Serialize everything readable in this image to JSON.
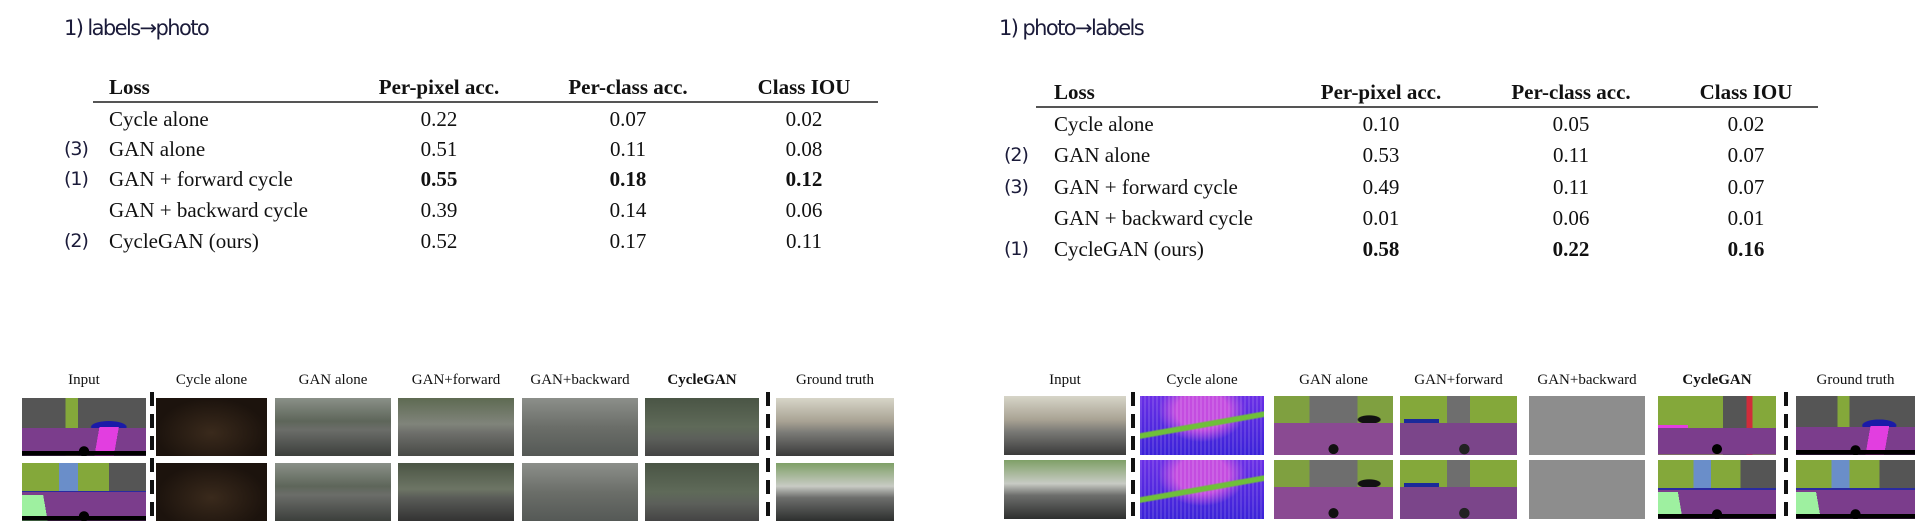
{
  "panels": [
    {
      "title": "1) labels→photo",
      "table": {
        "headers": [
          "Loss",
          "Per-pixel acc.",
          "Per-class acc.",
          "Class IOU"
        ],
        "rows": [
          {
            "marker": "",
            "loss": "Cycle alone",
            "values": [
              "0.22",
              "0.07",
              "0.02"
            ],
            "bold": false
          },
          {
            "marker": "(3)",
            "loss": "GAN alone",
            "values": [
              "0.51",
              "0.11",
              "0.08"
            ],
            "bold": false
          },
          {
            "marker": "(1)",
            "loss": "GAN + forward cycle",
            "values": [
              "0.55",
              "0.18",
              "0.12"
            ],
            "bold": true
          },
          {
            "marker": "",
            "loss": "GAN + backward cycle",
            "values": [
              "0.39",
              "0.14",
              "0.06"
            ],
            "bold": false
          },
          {
            "marker": "(2)",
            "loss": "CycleGAN (ours)",
            "values": [
              "0.52",
              "0.17",
              "0.11"
            ],
            "bold": false
          }
        ]
      },
      "columns": [
        {
          "label": "Input",
          "bold": false,
          "styles": [
            "seg",
            "seg2"
          ]
        },
        {
          "label": "Cycle alone",
          "bold": false,
          "styles": [
            "dark",
            "dark"
          ]
        },
        {
          "label": "GAN alone",
          "bold": false,
          "styles": [
            "photo",
            "photo"
          ]
        },
        {
          "label": "GAN+forward",
          "bold": false,
          "styles": [
            "fwd",
            "photo2"
          ]
        },
        {
          "label": "GAN+backward",
          "bold": false,
          "styles": [
            "grayish",
            "grayish"
          ]
        },
        {
          "label": "CycleGAN",
          "bold": true,
          "styles": [
            "cyc",
            "cyc"
          ]
        },
        {
          "label": "Ground truth",
          "bold": false,
          "styles": [
            "photoGT",
            "photoGT2"
          ]
        }
      ]
    },
    {
      "title": "1) photo→labels",
      "table": {
        "headers": [
          "Loss",
          "Per-pixel acc.",
          "Per-class acc.",
          "Class IOU"
        ],
        "rows": [
          {
            "marker": "",
            "loss": "Cycle alone",
            "values": [
              "0.10",
              "0.05",
              "0.02"
            ],
            "bold": false
          },
          {
            "marker": "(2)",
            "loss": "GAN alone",
            "values": [
              "0.53",
              "0.11",
              "0.07"
            ],
            "bold": false
          },
          {
            "marker": "(3)",
            "loss": "GAN + forward cycle",
            "values": [
              "0.49",
              "0.11",
              "0.07"
            ],
            "bold": false
          },
          {
            "marker": "",
            "loss": "GAN + backward cycle",
            "values": [
              "0.01",
              "0.06",
              "0.01"
            ],
            "bold": false
          },
          {
            "marker": "(1)",
            "loss": "CycleGAN (ours)",
            "values": [
              "0.58",
              "0.22",
              "0.16"
            ],
            "bold": true
          }
        ]
      },
      "columns": [
        {
          "label": "Input",
          "bold": false,
          "styles": [
            "photoGT",
            "photoGT2"
          ]
        },
        {
          "label": "Cycle alone",
          "bold": false,
          "styles": [
            "psych",
            "psych"
          ]
        },
        {
          "label": "GAN alone",
          "bold": false,
          "styles": [
            "segpred",
            "segpred"
          ]
        },
        {
          "label": "GAN+forward",
          "bold": false,
          "styles": [
            "segfwd",
            "segfwd"
          ]
        },
        {
          "label": "GAN+backward",
          "bold": false,
          "styles": [
            "flat",
            "flat"
          ]
        },
        {
          "label": "CycleGAN",
          "bold": true,
          "styles": [
            "segcg",
            "seg2"
          ]
        },
        {
          "label": "Ground truth",
          "bold": false,
          "styles": [
            "seg",
            "seg2"
          ]
        }
      ]
    }
  ]
}
